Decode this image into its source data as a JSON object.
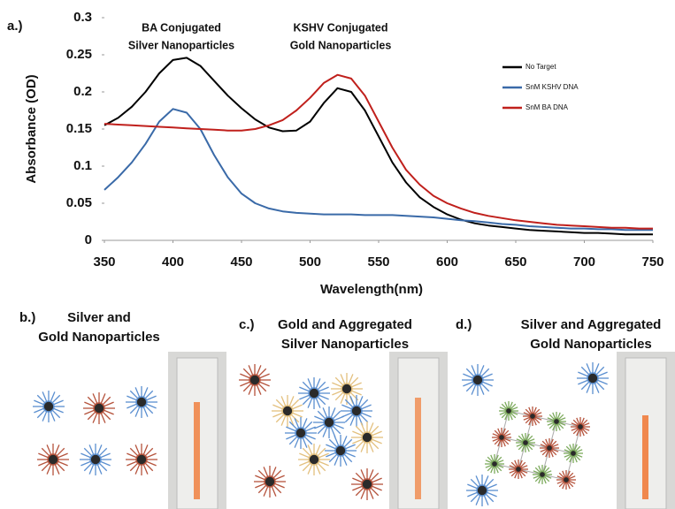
{
  "chart_data": {
    "type": "line",
    "panel_label": "a.)",
    "x_label": "Wavelength(nm)",
    "y_label": "Absorbance (OD)",
    "annotations": [
      [
        "BA Conjugated",
        "Silver Nanoparticles"
      ],
      [
        "KSHV Conjugated",
        "Gold Nanoparticles"
      ]
    ],
    "x": [
      350,
      360,
      370,
      380,
      390,
      400,
      410,
      420,
      430,
      440,
      450,
      460,
      470,
      480,
      490,
      500,
      510,
      520,
      530,
      540,
      550,
      560,
      570,
      580,
      590,
      600,
      610,
      620,
      630,
      640,
      650,
      660,
      670,
      680,
      690,
      700,
      710,
      720,
      730,
      740,
      750
    ],
    "series": [
      {
        "name": "No Target",
        "color": "#000000",
        "values": [
          0.155,
          0.165,
          0.18,
          0.2,
          0.225,
          0.243,
          0.246,
          0.235,
          0.215,
          0.195,
          0.178,
          0.163,
          0.152,
          0.147,
          0.148,
          0.16,
          0.185,
          0.205,
          0.2,
          0.175,
          0.14,
          0.105,
          0.078,
          0.058,
          0.045,
          0.035,
          0.028,
          0.023,
          0.02,
          0.018,
          0.016,
          0.014,
          0.013,
          0.012,
          0.011,
          0.01,
          0.01,
          0.009,
          0.008,
          0.008,
          0.008
        ]
      },
      {
        "name": "SnM KSHV DNA",
        "color": "#3a6aa8",
        "values": [
          0.068,
          0.085,
          0.105,
          0.13,
          0.16,
          0.177,
          0.172,
          0.15,
          0.115,
          0.085,
          0.063,
          0.05,
          0.043,
          0.039,
          0.037,
          0.036,
          0.035,
          0.035,
          0.035,
          0.034,
          0.034,
          0.034,
          0.033,
          0.032,
          0.031,
          0.029,
          0.027,
          0.026,
          0.024,
          0.022,
          0.021,
          0.019,
          0.018,
          0.017,
          0.016,
          0.016,
          0.015,
          0.015,
          0.014,
          0.014,
          0.014
        ]
      },
      {
        "name": "SnM BA DNA",
        "color": "#c0201c",
        "values": [
          0.157,
          0.156,
          0.155,
          0.154,
          0.153,
          0.152,
          0.151,
          0.15,
          0.149,
          0.148,
          0.148,
          0.15,
          0.155,
          0.162,
          0.175,
          0.192,
          0.212,
          0.223,
          0.218,
          0.195,
          0.16,
          0.125,
          0.095,
          0.075,
          0.06,
          0.05,
          0.043,
          0.037,
          0.033,
          0.03,
          0.027,
          0.025,
          0.023,
          0.021,
          0.02,
          0.019,
          0.018,
          0.017,
          0.017,
          0.016,
          0.016
        ]
      }
    ],
    "xlim": [
      350,
      750
    ],
    "xticks": [
      350,
      400,
      450,
      500,
      550,
      600,
      650,
      700,
      750
    ],
    "ylim": [
      0,
      0.3
    ],
    "yticks": [
      0,
      0.05,
      0.1,
      0.15,
      0.2,
      0.25,
      0.3
    ],
    "grid": false,
    "legend": "right"
  },
  "panels": [
    {
      "label": "b.)",
      "title": [
        "Silver and",
        "Gold Nanoparticles"
      ]
    },
    {
      "label": "c.)",
      "title": [
        "Gold and Aggregated",
        "Silver Nanoparticles"
      ]
    },
    {
      "label": "d.)",
      "title": [
        "Silver and Aggregated",
        "Gold Nanoparticles"
      ]
    }
  ]
}
